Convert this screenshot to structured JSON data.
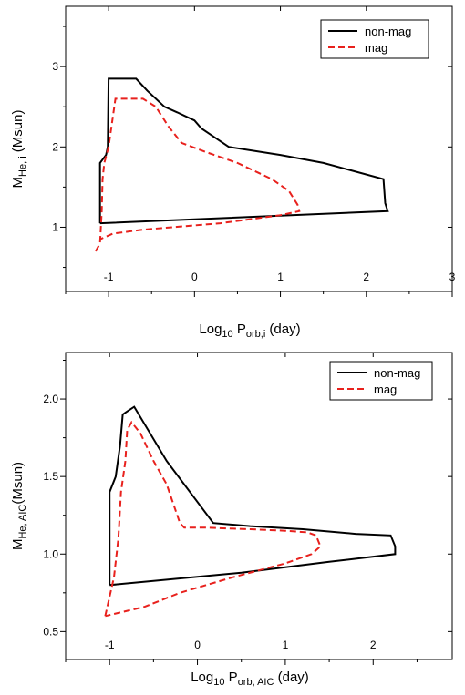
{
  "chart_data": [
    {
      "type": "line",
      "xlim": [
        -1.5,
        3
      ],
      "ylim": [
        0.2,
        3.75
      ],
      "xticks": [
        -1,
        0,
        1,
        2,
        3
      ],
      "xtick_labels": [
        "-1",
        "0",
        "1",
        "2",
        "3"
      ],
      "yticks": [
        1,
        2,
        3
      ],
      "ytick_labels": [
        "1",
        "2",
        "3"
      ],
      "xlabel": {
        "main": "Log",
        "sub1": "10",
        "mid": " P",
        "sub2": "orb,i",
        "tail": " (day)"
      },
      "ylabel": {
        "main": "M",
        "sub1": "He, i",
        "tail": " (Msun)"
      },
      "legend_position": "top-right",
      "colors": {
        "non-mag": "#000000",
        "mag": "#e8211d"
      },
      "series": [
        {
          "name": "non-mag",
          "style": "solid",
          "x": [
            -1.1,
            -1.1,
            -1.03,
            -1.01,
            -1.0,
            -0.68,
            -0.55,
            -0.35,
            -0.2,
            0.0,
            0.08,
            0.15,
            0.4,
            1.0,
            1.5,
            2.2,
            2.22,
            2.25,
            -1.1
          ],
          "y": [
            1.05,
            1.8,
            1.9,
            2.0,
            2.85,
            2.85,
            2.7,
            2.5,
            2.43,
            2.33,
            2.23,
            2.18,
            2.0,
            1.9,
            1.8,
            1.6,
            1.3,
            1.2,
            1.05
          ]
        },
        {
          "name": "mag",
          "style": "dashed",
          "x": [
            -1.15,
            -1.1,
            -1.08,
            -1.07,
            -1.05,
            -1.0,
            -0.92,
            -0.6,
            -0.45,
            -0.3,
            -0.15,
            0.15,
            0.5,
            0.9,
            1.1,
            1.2,
            1.22,
            1.0,
            0.3,
            -0.6,
            -0.95,
            -1.1
          ],
          "y": [
            0.7,
            0.8,
            1.2,
            1.6,
            1.8,
            2.0,
            2.6,
            2.6,
            2.5,
            2.25,
            2.05,
            1.93,
            1.8,
            1.6,
            1.45,
            1.28,
            1.2,
            1.15,
            1.05,
            0.97,
            0.92,
            0.85
          ]
        }
      ]
    },
    {
      "type": "line",
      "xlim": [
        -1.5,
        2.9
      ],
      "ylim": [
        0.32,
        2.3
      ],
      "xticks": [
        -1,
        0,
        1,
        2
      ],
      "xtick_labels": [
        "-1",
        "0",
        "1",
        "2"
      ],
      "yticks": [
        0.5,
        1.0,
        1.5,
        2.0
      ],
      "ytick_labels": [
        "0.5",
        "1.0",
        "1.5",
        "2.0"
      ],
      "xlabel": {
        "main": "Log",
        "sub1": "10",
        "mid": " P",
        "sub2": "orb, AIC",
        "tail": " (day)"
      },
      "ylabel": {
        "main": "M",
        "sub1": "He, AIC",
        "tail": "(Msun)"
      },
      "legend_position": "top-right",
      "colors": {
        "non-mag": "#000000",
        "mag": "#e8211d"
      },
      "series": [
        {
          "name": "non-mag",
          "style": "solid",
          "x": [
            -1.0,
            -1.0,
            -0.93,
            -0.88,
            -0.85,
            -0.8,
            -0.72,
            -0.35,
            0.18,
            0.6,
            1.2,
            1.8,
            2.2,
            2.25,
            2.25,
            1.5,
            0.5,
            -1.0
          ],
          "y": [
            0.8,
            1.4,
            1.5,
            1.7,
            1.9,
            1.92,
            1.95,
            1.6,
            1.2,
            1.18,
            1.16,
            1.13,
            1.12,
            1.05,
            1.0,
            0.95,
            0.88,
            0.8
          ]
        },
        {
          "name": "mag",
          "style": "dashed",
          "x": [
            -1.05,
            -0.95,
            -0.9,
            -0.87,
            -0.82,
            -0.8,
            -0.75,
            -0.65,
            -0.5,
            -0.35,
            -0.2,
            -0.15,
            0.1,
            0.6,
            1.0,
            1.25,
            1.35,
            1.4,
            1.3,
            1.0,
            0.4,
            -0.2,
            -0.6,
            -1.05
          ],
          "y": [
            0.6,
            0.85,
            1.1,
            1.4,
            1.6,
            1.8,
            1.85,
            1.78,
            1.6,
            1.45,
            1.2,
            1.17,
            1.17,
            1.16,
            1.15,
            1.14,
            1.12,
            1.05,
            1.0,
            0.94,
            0.85,
            0.75,
            0.66,
            0.6
          ]
        }
      ]
    }
  ]
}
